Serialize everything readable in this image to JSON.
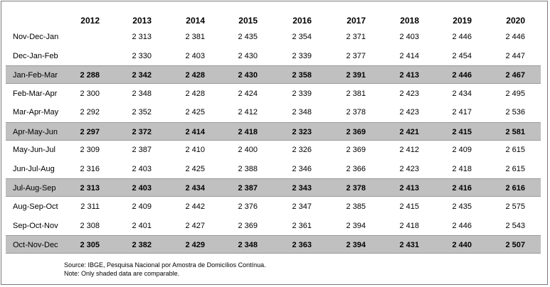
{
  "chart_data": {
    "type": "table",
    "columns": [
      "2012",
      "2013",
      "2014",
      "2015",
      "2016",
      "2017",
      "2018",
      "2019",
      "2020"
    ],
    "rows": [
      {
        "label": "Nov-Dec-Jan",
        "shaded": false,
        "values": [
          "",
          "2 313",
          "2 381",
          "2 435",
          "2 354",
          "2 371",
          "2 403",
          "2 446",
          "2 446"
        ]
      },
      {
        "label": "Dec-Jan-Feb",
        "shaded": false,
        "values": [
          "",
          "2 330",
          "2 403",
          "2 430",
          "2 339",
          "2 377",
          "2 414",
          "2 454",
          "2 447"
        ]
      },
      {
        "label": "Jan-Feb-Mar",
        "shaded": true,
        "values": [
          "2 288",
          "2 342",
          "2 428",
          "2 430",
          "2 358",
          "2 391",
          "2 413",
          "2 446",
          "2 467"
        ]
      },
      {
        "label": "Feb-Mar-Apr",
        "shaded": false,
        "values": [
          "2 300",
          "2 348",
          "2 428",
          "2 424",
          "2 339",
          "2 381",
          "2 423",
          "2 434",
          "2 495"
        ]
      },
      {
        "label": "Mar-Apr-May",
        "shaded": false,
        "values": [
          "2 292",
          "2 352",
          "2 425",
          "2 412",
          "2 348",
          "2 378",
          "2 423",
          "2 417",
          "2 536"
        ]
      },
      {
        "label": "Apr-May-Jun",
        "shaded": true,
        "values": [
          "2 297",
          "2 372",
          "2 414",
          "2 418",
          "2 323",
          "2 369",
          "2 421",
          "2 415",
          "2 581"
        ]
      },
      {
        "label": "May-Jun-Jul",
        "shaded": false,
        "values": [
          "2 309",
          "2 387",
          "2 410",
          "2 400",
          "2 326",
          "2 369",
          "2 412",
          "2 409",
          "2 615"
        ]
      },
      {
        "label": "Jun-Jul-Aug",
        "shaded": false,
        "values": [
          "2 316",
          "2 403",
          "2 425",
          "2 388",
          "2 346",
          "2 366",
          "2 423",
          "2 418",
          "2 615"
        ]
      },
      {
        "label": "Jul-Aug-Sep",
        "shaded": true,
        "values": [
          "2 313",
          "2 403",
          "2 434",
          "2 387",
          "2 343",
          "2 378",
          "2 413",
          "2 416",
          "2 616"
        ]
      },
      {
        "label": "Aug-Sep-Oct",
        "shaded": false,
        "values": [
          "2 311",
          "2 409",
          "2 442",
          "2 376",
          "2 347",
          "2 385",
          "2 415",
          "2 435",
          "2 575"
        ]
      },
      {
        "label": "Sep-Oct-Nov",
        "shaded": false,
        "values": [
          "2 308",
          "2 401",
          "2 427",
          "2 369",
          "2 361",
          "2 394",
          "2 418",
          "2 446",
          "2 543"
        ]
      },
      {
        "label": "Oct-Nov-Dec",
        "shaded": true,
        "values": [
          "2 305",
          "2 382",
          "2 429",
          "2 348",
          "2 363",
          "2 394",
          "2 431",
          "2 440",
          "2 507"
        ]
      }
    ],
    "notes": [
      "Source: IBGE, Pesquisa Nacional por Amostra de Domicílios Contínua.",
      "Note: Only shaded data are comparable."
    ],
    "shade_color": "#c0c0c0"
  }
}
